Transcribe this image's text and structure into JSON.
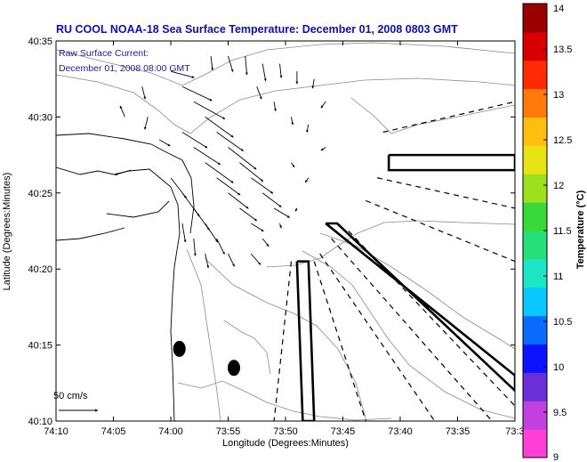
{
  "chart_data": {
    "type": "scatter",
    "title": "RU COOL  NOAA-18  Sea Surface Temperature:  December 01, 2008 0803 GMT",
    "annotations": [
      "Raw Surface Current:",
      "December 01, 2008 08:00 GMT"
    ],
    "scale_label": "50 cm/s",
    "xlabel": "Longitude (Degrees:Minutes)",
    "ylabel": "Latitude (Degrees:Minutes)",
    "xlim": [
      -74.1667,
      -73.5
    ],
    "ylim": [
      40.1667,
      40.5833
    ],
    "x_ticks": [
      {
        "value": -74.1667,
        "label": "74:10"
      },
      {
        "value": -74.0833,
        "label": "74:05"
      },
      {
        "value": -74.0,
        "label": "74:00"
      },
      {
        "value": -73.9167,
        "label": "73:55"
      },
      {
        "value": -73.8333,
        "label": "73:50"
      },
      {
        "value": -73.75,
        "label": "73:45"
      },
      {
        "value": -73.6667,
        "label": "73:40"
      },
      {
        "value": -73.5833,
        "label": "73:35"
      },
      {
        "value": -73.5,
        "label": "73:3"
      }
    ],
    "y_ticks": [
      {
        "value": 40.1667,
        "label": "40:10"
      },
      {
        "value": 40.25,
        "label": "40:15"
      },
      {
        "value": 40.3333,
        "label": "40:20"
      },
      {
        "value": 40.4167,
        "label": "40:25"
      },
      {
        "value": 40.5,
        "label": "40:30"
      },
      {
        "value": 40.5833,
        "label": "40:35"
      }
    ],
    "colorbar": {
      "title": "Temperature (°C)",
      "range": [
        9,
        14
      ],
      "ticks": [
        {
          "value": 9,
          "label": "9"
        },
        {
          "value": 9.5,
          "label": "9.5"
        },
        {
          "value": 10,
          "label": "10"
        },
        {
          "value": 10.5,
          "label": "10.5"
        },
        {
          "value": 11,
          "label": "11"
        },
        {
          "value": 11.5,
          "label": "11.5"
        },
        {
          "value": 12,
          "label": "12"
        },
        {
          "value": 12.5,
          "label": "12.5"
        },
        {
          "value": 13,
          "label": "13"
        },
        {
          "value": 13.5,
          "label": "13.5"
        },
        {
          "value": 14,
          "label": "14"
        }
      ],
      "colors": [
        "#ff3fd6",
        "#c23fe0",
        "#6a2fd8",
        "#0d12ff",
        "#0a6cff",
        "#08c8ff",
        "#1be6c4",
        "#27e07a",
        "#39d93a",
        "#9de01c",
        "#e8e414",
        "#ffbf0f",
        "#ff7a0a",
        "#ff2a05",
        "#d80000",
        "#9a0000"
      ]
    },
    "exclusion_polygons": [
      [
        [
          -73.6833,
          40.4583
        ],
        [
          -73.5,
          40.4583
        ],
        [
          -73.5,
          40.4417
        ],
        [
          -73.6833,
          40.4417
        ],
        [
          -73.6833,
          40.4583
        ]
      ],
      [
        [
          -73.775,
          40.3833
        ],
        [
          -73.7583,
          40.3833
        ],
        [
          -73.5,
          40.2
        ],
        [
          -73.5,
          40.2167
        ],
        [
          -73.775,
          40.3833
        ]
      ],
      [
        [
          -73.8167,
          40.3417
        ],
        [
          -73.8,
          40.3417
        ],
        [
          -73.7917,
          40.1667
        ],
        [
          -73.8083,
          40.1667
        ],
        [
          -73.8167,
          40.3417
        ]
      ]
    ],
    "antenna_rays": [
      [
        [
          -73.6917,
          40.4833
        ],
        [
          -73.5,
          40.5167
        ]
      ],
      [
        [
          -73.7,
          40.4333
        ],
        [
          -73.5,
          40.4
        ]
      ],
      [
        [
          -73.7167,
          40.4083
        ],
        [
          -73.5,
          40.3417
        ]
      ],
      [
        [
          -73.7417,
          40.375
        ],
        [
          -73.5,
          40.1833
        ]
      ],
      [
        [
          -73.7667,
          40.3667
        ],
        [
          -73.5333,
          40.1667
        ]
      ],
      [
        [
          -73.7833,
          40.35
        ],
        [
          -73.6167,
          40.1667
        ]
      ],
      [
        [
          -73.7917,
          40.3417
        ],
        [
          -73.7167,
          40.1667
        ]
      ],
      [
        [
          -73.825,
          40.3417
        ],
        [
          -73.85,
          40.1667
        ]
      ]
    ],
    "fixed_platforms": [
      {
        "lon": -73.9875,
        "lat": 40.2458
      },
      {
        "lon": -73.9083,
        "lat": 40.225
      }
    ],
    "current_vectors": [
      {
        "lon": -74.0667,
        "lat": 40.5,
        "u": -6,
        "v": 14
      },
      {
        "lon": -74.0583,
        "lat": 40.4417,
        "u": -20,
        "v": -6
      },
      {
        "lon": -74.0,
        "lat": 40.55,
        "u": 30,
        "v": -8
      },
      {
        "lon": -73.9833,
        "lat": 40.5333,
        "u": 38,
        "v": -18
      },
      {
        "lon": -73.9667,
        "lat": 40.5167,
        "u": 40,
        "v": -22
      },
      {
        "lon": -73.95,
        "lat": 40.5,
        "u": 36,
        "v": -26
      },
      {
        "lon": -73.9333,
        "lat": 40.4833,
        "u": 34,
        "v": -24
      },
      {
        "lon": -73.9167,
        "lat": 40.4667,
        "u": 36,
        "v": -28
      },
      {
        "lon": -73.9,
        "lat": 40.45,
        "u": 30,
        "v": -24
      },
      {
        "lon": -73.8833,
        "lat": 40.4333,
        "u": 28,
        "v": -20
      },
      {
        "lon": -73.8667,
        "lat": 40.4167,
        "u": 24,
        "v": -18
      },
      {
        "lon": -73.85,
        "lat": 40.4,
        "u": 20,
        "v": -12
      },
      {
        "lon": -73.9833,
        "lat": 40.4833,
        "u": 32,
        "v": -20
      },
      {
        "lon": -73.9667,
        "lat": 40.4667,
        "u": 34,
        "v": -22
      },
      {
        "lon": -73.95,
        "lat": 40.45,
        "u": 36,
        "v": -26
      },
      {
        "lon": -73.9333,
        "lat": 40.4333,
        "u": 30,
        "v": -22
      },
      {
        "lon": -73.9167,
        "lat": 40.4167,
        "u": 26,
        "v": -20
      },
      {
        "lon": -73.9,
        "lat": 40.4,
        "u": 22,
        "v": -16
      },
      {
        "lon": -73.8833,
        "lat": 40.3833,
        "u": 16,
        "v": -10
      },
      {
        "lon": -74.0,
        "lat": 40.4333,
        "u": 20,
        "v": -26
      },
      {
        "lon": -73.9833,
        "lat": 40.4167,
        "u": 22,
        "v": -30
      },
      {
        "lon": -73.9667,
        "lat": 40.4,
        "u": 20,
        "v": -28
      },
      {
        "lon": -73.95,
        "lat": 40.3833,
        "u": 16,
        "v": -24
      },
      {
        "lon": -73.9333,
        "lat": 40.3667,
        "u": 10,
        "v": -20
      },
      {
        "lon": -73.9833,
        "lat": 40.3833,
        "u": 4,
        "v": -24
      },
      {
        "lon": -73.9667,
        "lat": 40.3667,
        "u": 2,
        "v": -22
      },
      {
        "lon": -73.95,
        "lat": 40.35,
        "u": 4,
        "v": -18
      },
      {
        "lon": -73.9167,
        "lat": 40.35,
        "u": 8,
        "v": -16
      },
      {
        "lon": -73.8833,
        "lat": 40.35,
        "u": 12,
        "v": -14
      },
      {
        "lon": -73.8667,
        "lat": 40.3667,
        "u": 8,
        "v": -10
      },
      {
        "lon": -74.0417,
        "lat": 40.5333,
        "u": 4,
        "v": -16
      },
      {
        "lon": -74.0333,
        "lat": 40.5,
        "u": -4,
        "v": -16
      },
      {
        "lon": -74.0167,
        "lat": 40.475,
        "u": 14,
        "v": -8
      },
      {
        "lon": -73.9417,
        "lat": 40.5667,
        "u": 2,
        "v": -18
      },
      {
        "lon": -73.9167,
        "lat": 40.5667,
        "u": 6,
        "v": -20
      },
      {
        "lon": -73.8917,
        "lat": 40.5667,
        "u": 2,
        "v": -24
      },
      {
        "lon": -73.8667,
        "lat": 40.5583,
        "u": 4,
        "v": -22
      },
      {
        "lon": -73.8417,
        "lat": 40.5583,
        "u": 2,
        "v": -18
      },
      {
        "lon": -73.8167,
        "lat": 40.55,
        "u": 0,
        "v": -16
      },
      {
        "lon": -73.7917,
        "lat": 40.5417,
        "u": -2,
        "v": -12
      },
      {
        "lon": -73.875,
        "lat": 40.5333,
        "u": 6,
        "v": -16
      },
      {
        "lon": -73.85,
        "lat": 40.5167,
        "u": 2,
        "v": -12
      },
      {
        "lon": -73.825,
        "lat": 40.5,
        "u": 2,
        "v": -10
      },
      {
        "lon": -73.8,
        "lat": 40.4917,
        "u": -2,
        "v": -10
      },
      {
        "lon": -73.775,
        "lat": 40.5167,
        "u": -6,
        "v": -8
      },
      {
        "lon": -73.825,
        "lat": 40.45,
        "u": 4,
        "v": -6
      },
      {
        "lon": -73.8,
        "lat": 40.4333,
        "u": -4,
        "v": -6
      },
      {
        "lon": -73.775,
        "lat": 40.4667,
        "u": -6,
        "v": -4
      },
      {
        "lon": -73.8417,
        "lat": 40.3833,
        "u": 2,
        "v": -6
      },
      {
        "lon": -73.8167,
        "lat": 40.4,
        "u": -2,
        "v": -4
      }
    ]
  }
}
